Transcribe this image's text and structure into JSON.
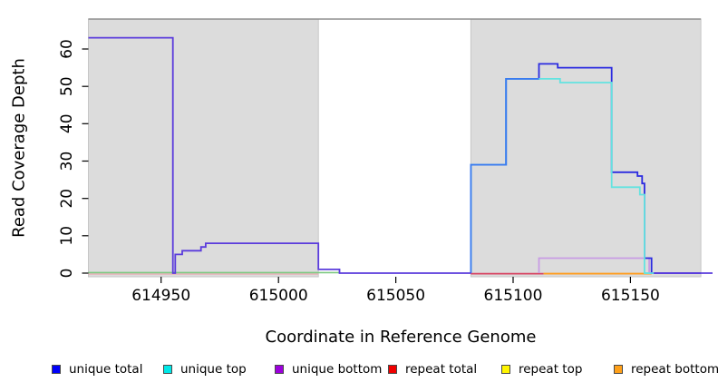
{
  "chart_data": {
    "type": "line",
    "subtype": "step-coverage-plot",
    "title": "",
    "xlabel": "Coordinate in Reference Genome",
    "ylabel": "Read Coverage Depth",
    "xlim": [
      614919,
      615185
    ],
    "ylim": [
      0,
      68
    ],
    "x_tick_labels": [
      "614950",
      "615000",
      "615050",
      "615100",
      "615150"
    ],
    "x_tick_values": [
      614950,
      615000,
      615050,
      615100,
      615150
    ],
    "y_tick_labels": [
      "0",
      "10",
      "20",
      "30",
      "40",
      "50",
      "60"
    ],
    "y_tick_values": [
      0,
      10,
      20,
      30,
      40,
      50,
      60
    ],
    "grid": false,
    "background": "#ffffff",
    "shaded_regions": [
      {
        "name": "left-alignment-block",
        "from": 614919,
        "to": 615017,
        "fill": "#dcdcdc",
        "stroke": "#c6c6c6"
      },
      {
        "name": "right-alignment-block",
        "from": 615082,
        "to": 615180,
        "fill": "#dcdcdc",
        "stroke": "#c6c6c6"
      }
    ],
    "top_boundary_line": {
      "value": 68,
      "x_from": 614919,
      "x_to": 615180,
      "color": "#8f8f8f"
    },
    "series": [
      {
        "name": "unique total",
        "color": "#0000fa",
        "steps": [
          [
            614919,
            63
          ],
          [
            614955,
            0
          ],
          [
            614956,
            5
          ],
          [
            614959,
            6
          ],
          [
            614967,
            7
          ],
          [
            614969,
            8
          ],
          [
            615017,
            1
          ],
          [
            615026,
            0
          ],
          [
            615082,
            29
          ],
          [
            615097,
            52
          ],
          [
            615111,
            56
          ],
          [
            615119,
            55
          ],
          [
            615142,
            27
          ],
          [
            615153,
            26
          ],
          [
            615155,
            24
          ],
          [
            615156,
            4
          ],
          [
            615159,
            0
          ],
          [
            615185,
            0
          ]
        ]
      },
      {
        "name": "unique top",
        "color": "#00e8e8",
        "steps": [
          [
            614919,
            0
          ],
          [
            615082,
            29
          ],
          [
            615097,
            52
          ],
          [
            615120,
            51
          ],
          [
            615142,
            23
          ],
          [
            615154,
            21
          ],
          [
            615156,
            0
          ],
          [
            615185,
            0
          ]
        ]
      },
      {
        "name": "unique bottom",
        "color": "#9c00dc",
        "steps": [
          [
            614919,
            63
          ],
          [
            614955,
            0
          ],
          [
            614956,
            5
          ],
          [
            614959,
            6
          ],
          [
            614967,
            7
          ],
          [
            614969,
            8
          ],
          [
            615017,
            1
          ],
          [
            615026,
            0
          ],
          [
            615111,
            4
          ],
          [
            615158,
            0
          ],
          [
            615185,
            0
          ]
        ]
      },
      {
        "name": "repeat total",
        "color": "#f00000",
        "steps": [
          [
            614919,
            0
          ],
          [
            615185,
            0
          ]
        ]
      },
      {
        "name": "repeat top",
        "color": "#fff500",
        "steps": [
          [
            614919,
            0
          ],
          [
            615185,
            0
          ]
        ]
      },
      {
        "name": "repeat bottom",
        "color": "#ffa019",
        "steps": [
          [
            614919,
            0
          ],
          [
            615185,
            0
          ]
        ]
      }
    ],
    "drawn_lines": [
      {
        "name": "zero-line-pink-blend",
        "color": "#eab0b8",
        "width": 1.5,
        "dy": 1,
        "start0": false,
        "points": [
          [
            614919,
            0
          ],
          [
            615017,
            0
          ]
        ]
      },
      {
        "name": "zero-line-green-blend",
        "color": "#7cc981",
        "width": 1.6,
        "dy": -0.6,
        "start0": false,
        "points": [
          [
            614919,
            0
          ],
          [
            615026,
            0
          ]
        ]
      },
      {
        "name": "repeat-total-zero",
        "color": "#d84462",
        "width": 1.8,
        "dy": 0.6,
        "start0": false,
        "points": [
          [
            615082,
            0
          ],
          [
            615113,
            0
          ]
        ]
      },
      {
        "name": "repeat-bottom-zero",
        "color": "#ff9d1f",
        "width": 1.9,
        "dy": 0.6,
        "start0": false,
        "points": [
          [
            615113,
            0
          ],
          [
            615159,
            0
          ]
        ]
      },
      {
        "name": "unique-top-tail",
        "color": "#63e3e0",
        "width": 1.8,
        "dy": 0,
        "start0": false,
        "points": [
          [
            615156,
            0
          ],
          [
            615161,
            0
          ]
        ]
      },
      {
        "name": "unique-bottom-low-rect",
        "color": "#c89ce4",
        "width": 1.8,
        "dy": 0,
        "start0": true,
        "points": [
          [
            615111,
            4
          ],
          [
            615158,
            0
          ],
          [
            615159,
            0
          ]
        ]
      },
      {
        "name": "unique-total-right",
        "color": "#2b2be0",
        "width": 1.8,
        "dy": 0,
        "start0": true,
        "points": [
          [
            615082,
            29
          ],
          [
            615097,
            52
          ],
          [
            615111,
            56
          ],
          [
            615119,
            55
          ],
          [
            615142,
            27
          ],
          [
            615153,
            26
          ],
          [
            615155,
            24
          ],
          [
            615156,
            4
          ],
          [
            615159,
            0
          ],
          [
            615180,
            0
          ]
        ]
      },
      {
        "name": "unique-top-right",
        "color": "#63e3e0",
        "width": 1.8,
        "dy": 0,
        "start0": true,
        "points": [
          [
            615082,
            29
          ],
          [
            615097,
            52
          ],
          [
            615120,
            51
          ],
          [
            615142,
            23
          ],
          [
            615154,
            21
          ],
          [
            615156,
            0
          ],
          [
            615160,
            0
          ]
        ]
      },
      {
        "name": "blue-cyan-overlap",
        "color": "#3a7bf0",
        "width": 1.8,
        "dy": 0,
        "start0": true,
        "points": [
          [
            615082,
            29
          ],
          [
            615097,
            52
          ],
          [
            615111,
            52
          ]
        ]
      },
      {
        "name": "blue-purple-overlap-left",
        "color": "#5a3bdc",
        "width": 1.8,
        "dy": 0,
        "start0": false,
        "points": [
          [
            614919,
            63
          ],
          [
            614955,
            0
          ],
          [
            614956,
            5
          ],
          [
            614959,
            6
          ],
          [
            614967,
            7
          ],
          [
            614969,
            8
          ],
          [
            615017,
            1
          ],
          [
            615026,
            0
          ],
          [
            615082,
            0
          ]
        ]
      },
      {
        "name": "blue-purple-overlap-tail",
        "color": "#5a3bdc",
        "width": 1.8,
        "dy": 0,
        "start0": false,
        "points": [
          [
            615160,
            0
          ],
          [
            615185,
            0
          ]
        ]
      }
    ],
    "legend": {
      "position": "bottom",
      "items": [
        {
          "label": "unique total",
          "color": "#0000fa"
        },
        {
          "label": "unique top",
          "color": "#00e8e8"
        },
        {
          "label": "unique bottom",
          "color": "#9c00dc"
        },
        {
          "label": "repeat total",
          "color": "#f00000"
        },
        {
          "label": "repeat top",
          "color": "#fff500"
        },
        {
          "label": "repeat bottom",
          "color": "#ffa019"
        }
      ]
    }
  }
}
